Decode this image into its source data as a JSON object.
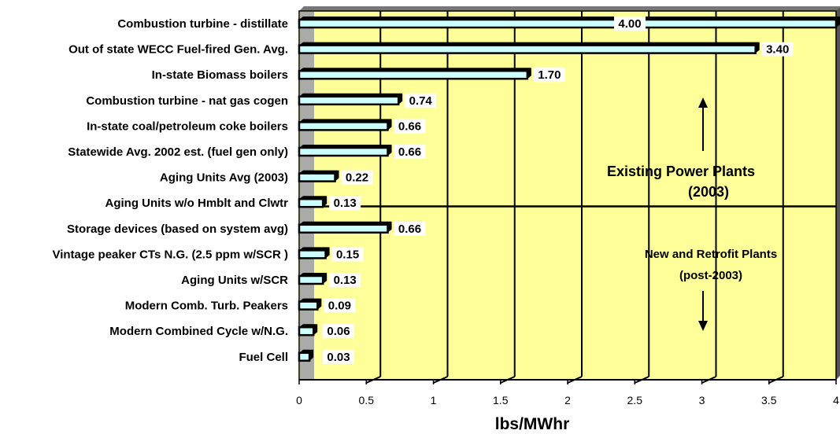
{
  "chart_data": {
    "type": "bar",
    "orientation": "horizontal",
    "categories": [
      "Combustion turbine - distillate",
      "Out of state WECC Fuel-fired Gen. Avg.",
      "In-state Biomass boilers",
      "Combustion turbine - nat gas cogen",
      "In-state coal/petroleum coke boilers",
      "Statewide Avg. 2002 est. (fuel gen only)",
      "Aging Units Avg (2003)",
      "Aging Units w/o Hmblt and Clwtr",
      "Storage devices (based on system avg)",
      "Vintage peaker CTs N.G. (2.5 ppm w/SCR )",
      "Aging Units w/SCR",
      "Modern Comb. Turb. Peakers",
      "Modern Combined Cycle w/N.G.",
      "Fuel Cell"
    ],
    "values": [
      4.0,
      3.4,
      1.7,
      0.74,
      0.66,
      0.66,
      0.22,
      0.13,
      0.66,
      0.15,
      0.13,
      0.09,
      0.06,
      0.03
    ],
    "data_labels": [
      "4.00",
      "3.40",
      "1.70",
      "0.74",
      "0.66",
      "0.66",
      "0.22",
      "0.13",
      "0.66",
      "0.15",
      "0.13",
      "0.09",
      "0.06",
      "0.03"
    ],
    "xlabel": "lbs/MWhr",
    "xlim": [
      0,
      4
    ],
    "xticks": [
      "0",
      "0.5",
      "1",
      "1.5",
      "2",
      "2.5",
      "3",
      "3.5",
      "4"
    ],
    "grid": "vertical",
    "annotations": {
      "existing_line1": "Existing Power Plants",
      "existing_line2": "(2003)",
      "new_line1": "New and Retrofit Plants",
      "new_line2": "(post-2003)"
    },
    "colors": {
      "plot_bg": "#ffff99",
      "band": "#aaaaaa",
      "bar_fill": "#ccffff",
      "bar_edge": "#000000",
      "grid": "#000000"
    }
  }
}
